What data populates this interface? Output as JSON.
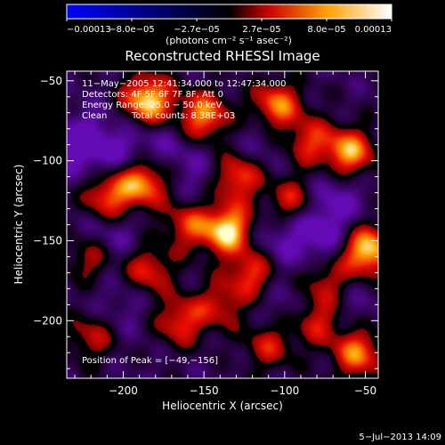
{
  "chart_data": {
    "type": "heatmap",
    "title": "Reconstructed RHESSI Image",
    "xlabel": "Heliocentric X (arcsec)",
    "ylabel": "Heliocentric Y (arcsec)",
    "xlim": [
      -235,
      -42
    ],
    "ylim": [
      -236,
      -44
    ],
    "xticks": [
      -200,
      -150,
      -100,
      -50
    ],
    "yticks": [
      -50,
      -100,
      -150,
      -200
    ],
    "xtick_labels": [
      "−200",
      "−150",
      "−100",
      "−50"
    ],
    "ytick_labels": [
      "−50",
      "−100",
      "−150",
      "−200"
    ],
    "colorbar": {
      "min": -0.00013,
      "max": 0.00013,
      "tick_labels": [
        "−0.00013",
        "−8.0e−05",
        "−2.7e−05",
        "2.7e−05",
        "8.0e−05",
        "0.00013"
      ],
      "unit_label": "(photons cm⁻² s⁻¹ asec⁻²)",
      "colormap": [
        "#0000ff",
        "#000000",
        "#c80000",
        "#ffa000",
        "#ffffff"
      ]
    },
    "annotations": {
      "time": "11−May−2005 12:41:34.000 to 12:47:34.000",
      "detectors": "Detectors: 4F 5F 6F 7F 8F, Att 0",
      "energy": "Energy Range: 25.0 − 50.0 keV",
      "method": "Clean",
      "counts": "Total counts: 8.38E+03",
      "peak": "Position of Peak = [−49,−156]"
    },
    "peak": {
      "x": -49,
      "y": -156
    },
    "bright_sources": [
      {
        "x": -185,
        "y": -62,
        "v": 1.0
      },
      {
        "x": -150,
        "y": -72,
        "v": 0.8
      },
      {
        "x": -135,
        "y": -143,
        "v": 1.0
      },
      {
        "x": -49,
        "y": -156,
        "v": 1.0
      },
      {
        "x": -210,
        "y": -122,
        "v": 0.7
      },
      {
        "x": -188,
        "y": -113,
        "v": 0.85
      },
      {
        "x": -160,
        "y": -140,
        "v": 0.55
      },
      {
        "x": -130,
        "y": -110,
        "v": 0.75
      },
      {
        "x": -105,
        "y": -65,
        "v": 0.75
      },
      {
        "x": -85,
        "y": -88,
        "v": 0.55
      },
      {
        "x": -60,
        "y": -95,
        "v": 0.85
      },
      {
        "x": -95,
        "y": -125,
        "v": 0.6
      },
      {
        "x": -220,
        "y": -160,
        "v": 0.55
      },
      {
        "x": -185,
        "y": -168,
        "v": 0.6
      },
      {
        "x": -165,
        "y": -200,
        "v": 0.6
      },
      {
        "x": -140,
        "y": -190,
        "v": 0.45
      },
      {
        "x": -110,
        "y": -215,
        "v": 0.5
      },
      {
        "x": -80,
        "y": -200,
        "v": 0.55
      },
      {
        "x": -55,
        "y": -220,
        "v": 0.75
      },
      {
        "x": -220,
        "y": -210,
        "v": 0.45
      },
      {
        "x": -120,
        "y": -170,
        "v": 0.65
      },
      {
        "x": -75,
        "y": -175,
        "v": 0.5
      }
    ],
    "dark_sources": [
      {
        "x": -225,
        "y": -90,
        "v": 0.9
      },
      {
        "x": -200,
        "y": -95,
        "v": 0.5
      },
      {
        "x": -175,
        "y": -90,
        "v": 0.4
      },
      {
        "x": -210,
        "y": -150,
        "v": 0.7
      },
      {
        "x": -150,
        "y": -110,
        "v": 0.45
      },
      {
        "x": -110,
        "y": -150,
        "v": 0.5
      },
      {
        "x": -80,
        "y": -145,
        "v": 0.9
      },
      {
        "x": -115,
        "y": -90,
        "v": 0.35
      },
      {
        "x": -70,
        "y": -120,
        "v": 0.6
      },
      {
        "x": -60,
        "y": -190,
        "v": 0.35
      },
      {
        "x": -200,
        "y": -190,
        "v": 0.35
      },
      {
        "x": -100,
        "y": -190,
        "v": 0.4
      }
    ]
  },
  "footer": {
    "date": "5−Jul−2013 14:09"
  }
}
